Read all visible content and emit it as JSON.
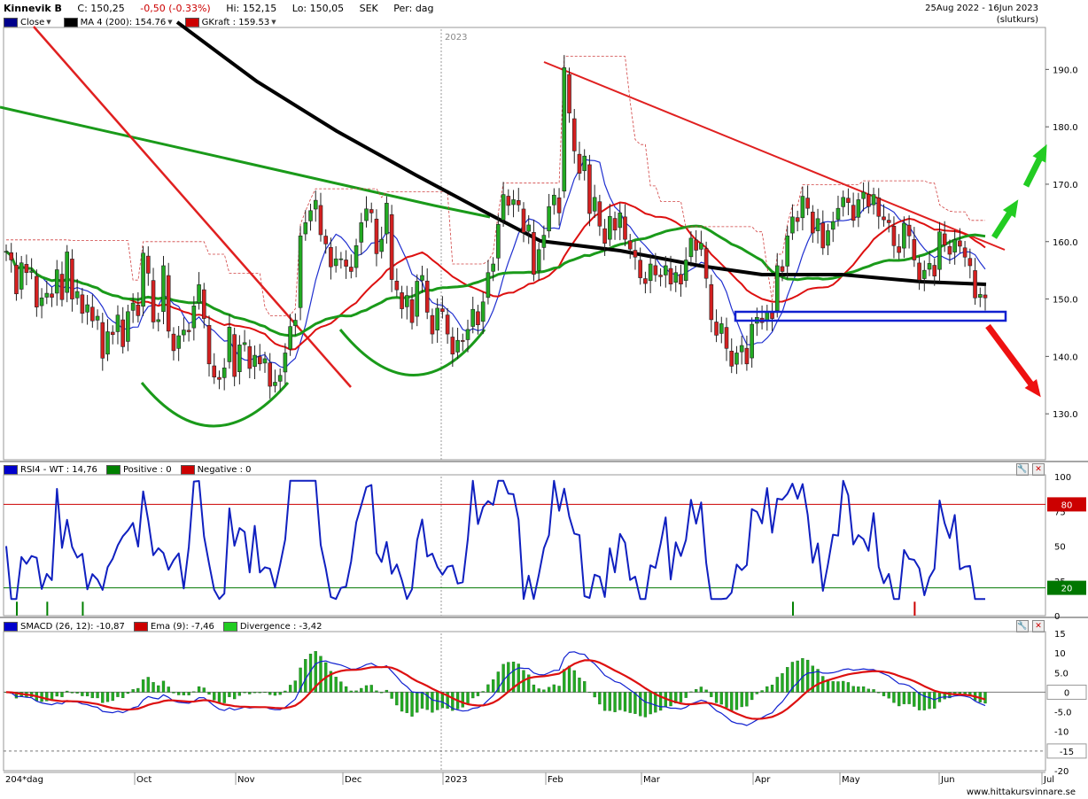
{
  "header": {
    "ticker": "Kinnevik B",
    "close": "C: 150,25",
    "change": "-0,50 (-0.33%)",
    "high": "Hi: 152,15",
    "low": "Lo: 150,05",
    "currency": "SEK",
    "period": "Per: dag",
    "date_range": "25Aug 2022 - 16Jun 2023",
    "mode": "(slutkurs)"
  },
  "price_legend": [
    {
      "label": "Close",
      "color": "#00008b"
    },
    {
      "label": "MA 4 (200): 154.76",
      "color": "#000000"
    },
    {
      "label": "GKraft : 159.53",
      "color": "#cc0000"
    }
  ],
  "rsi_legend": [
    {
      "label": "RSI4 - WT : 14,76",
      "color": "#0000cc"
    },
    {
      "label": "Positive : 0",
      "color": "#008000"
    },
    {
      "label": "Negative : 0",
      "color": "#cc0000"
    }
  ],
  "macd_legend": [
    {
      "label": "SMACD (26, 12): -10,87",
      "color": "#0000cc"
    },
    {
      "label": "Ema (9): -7,46",
      "color": "#cc0000"
    },
    {
      "label": "Divergence : -3,42",
      "color": "#22cc22"
    }
  ],
  "year_marker": "2023",
  "x_axis": {
    "corner_label": "204*dag",
    "labels": [
      "Oct",
      "Nov",
      "Dec",
      "2023",
      "Feb",
      "Mar",
      "Apr",
      "May",
      "Jun",
      "Jul"
    ]
  },
  "price_axis": {
    "ticks": [
      130.0,
      140.0,
      150.0,
      160.0,
      170.0,
      180.0,
      190.0
    ],
    "tick_labels": [
      "130.0",
      "140.0",
      "150.0",
      "160.0",
      "170.0",
      "180.0",
      "190.0"
    ],
    "range": [
      122,
      197
    ]
  },
  "rsi_axis": {
    "ticks": [
      "100",
      "75",
      "50",
      "25",
      "0"
    ],
    "level_labels": [
      "80",
      "20"
    ]
  },
  "macd_axis": {
    "ticks": [
      "15",
      "10",
      "5.0",
      "0",
      "-5.0",
      "-10",
      "-15",
      "-20"
    ],
    "marker_labels": [
      "0",
      "-15"
    ]
  },
  "footer": "www.hittakursvinnare.se",
  "chart_data": [
    {
      "type": "candlestick",
      "title": "Kinnevik B",
      "ylim": [
        122,
        197
      ],
      "close": [
        158.3,
        156.8,
        150.9,
        156.3,
        154.6,
        154.9,
        148.6,
        150.2,
        151.0,
        150.3,
        155.1,
        149.9,
        158.2,
        150.0,
        151.3,
        147.5,
        149.0,
        146.2,
        147.0,
        139.7,
        144.3,
        143.8,
        147.2,
        141.7,
        147.8,
        149.3,
        147.1,
        158.0,
        154.5,
        146.0,
        146.4,
        155.8,
        144.4,
        141.0,
        143.6,
        144.6,
        144.3,
        148.8,
        152.5,
        146.6,
        138.7,
        136.4,
        136.0,
        138.0,
        145.1,
        136.5,
        142.0,
        142.4,
        137.9,
        140.2,
        138.7,
        139.6,
        134.8,
        135.5,
        136.7,
        140.6,
        145.2,
        146.3,
        161.0,
        163.3,
        165.4,
        167.2,
        161.2,
        159.6,
        155.6,
        157.0,
        157.0,
        155.7,
        154.8,
        159.3,
        163.3,
        165.7,
        165.0,
        157.9,
        160.4,
        166.7,
        153.4,
        151.6,
        148.3,
        150.6,
        145.9,
        153.1,
        154.1,
        147.7,
        143.9,
        148.4,
        147.8,
        143.9,
        140.4,
        142.8,
        142.6,
        144.7,
        148.2,
        145.5,
        149.5,
        154.6,
        156.1,
        163.0,
        168.2,
        166.3,
        167.3,
        166.4,
        161.6,
        162.9,
        154.3,
        158.6,
        161.1,
        166.1,
        168.1,
        165.0,
        190.3,
        182.4,
        175.8,
        171.9,
        174.9,
        164.9,
        167.7,
        162.7,
        159.7,
        164.4,
        162.0,
        165.0,
        160.4,
        158.7,
        157.3,
        153.7,
        152.7,
        156.1,
        154.2,
        153.9,
        155.8,
        152.6,
        154.6,
        152.6,
        156.8,
        160.6,
        158.5,
        159.7,
        153.6,
        146.4,
        143.7,
        145.7,
        141.4,
        138.3,
        140.6,
        141.9,
        138.7,
        145.6,
        146.8,
        145.9,
        147.8,
        146.6,
        155.8,
        154.8,
        161.0,
        164.3,
        163.5,
        167.9,
        165.8,
        161.5,
        164.0,
        158.9,
        161.9,
        163.5,
        165.8,
        167.7,
        166.8,
        163.7,
        167.3,
        168.6,
        166.1,
        168.2,
        164.4,
        163.8,
        163.3,
        159.3,
        158.1,
        163.2,
        161.0,
        156.8,
        153.3,
        155.0,
        156.2,
        154.0,
        161.7,
        159.4,
        157.8,
        160.3,
        159.2,
        157.3,
        155.8,
        150.2,
        150.8,
        150.2
      ]
    },
    {
      "type": "line",
      "title": "RSI4 - WT",
      "ylim": [
        0,
        100
      ],
      "levels": [
        80,
        20
      ]
    },
    {
      "type": "line",
      "title": "SMACD (26, 12)",
      "ylim": [
        -20,
        15
      ]
    }
  ]
}
